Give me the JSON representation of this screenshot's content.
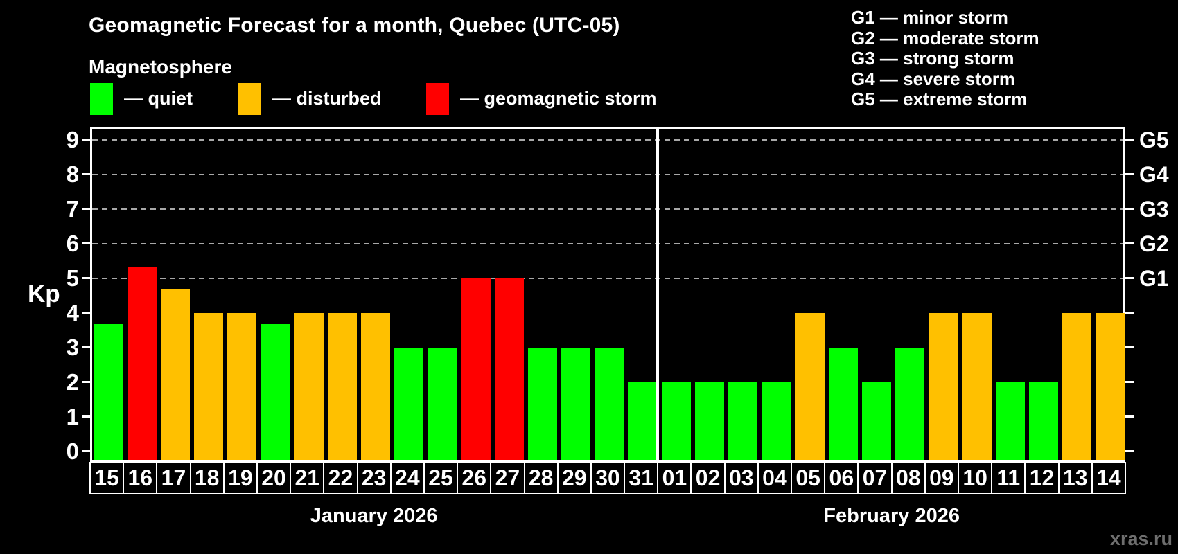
{
  "title": "Geomagnetic Forecast for a month, Quebec (UTC-05)",
  "subtitle": "Magnetosphere",
  "legend": {
    "items": [
      {
        "id": "quiet",
        "label": "— quiet",
        "color": "#00ff00"
      },
      {
        "id": "disturbed",
        "label": "— disturbed",
        "color": "#ffc000"
      },
      {
        "id": "storm",
        "label": "— geomagnetic storm",
        "color": "#ff0000"
      }
    ]
  },
  "g_scale_legend": [
    "G1 — minor storm",
    "G2 — moderate storm",
    "G3 — strong storm",
    "G4 — severe storm",
    "G5 — extreme storm"
  ],
  "watermark": "xras.ru",
  "colors": {
    "background": "#000000",
    "quiet": "#00ff00",
    "disturbed": "#ffc000",
    "storm": "#ff0000",
    "axis": "#ffffff",
    "gridline": "#a8a8a8",
    "watermark": "#6e6e6e"
  },
  "chart_data": {
    "type": "bar",
    "title": "Geomagnetic Forecast for a month, Quebec (UTC-05)",
    "subtitle": "Magnetosphere",
    "ylabel": "Kp",
    "ylim": [
      0,
      9.4
    ],
    "yticks": [
      0,
      1,
      2,
      3,
      4,
      5,
      6,
      7,
      8,
      9
    ],
    "gridlines_at_kp": [
      5,
      6,
      7,
      8,
      9
    ],
    "grid": "dashed-horizontal",
    "right_axis_labels": [
      {
        "kp": 5,
        "text": "G1"
      },
      {
        "kp": 6,
        "text": "G2"
      },
      {
        "kp": 7,
        "text": "G3"
      },
      {
        "kp": 8,
        "text": "G4"
      },
      {
        "kp": 9,
        "text": "G5"
      }
    ],
    "x_groups": [
      {
        "label": "January 2026",
        "days": 17
      },
      {
        "label": "February 2026",
        "days": 14
      }
    ],
    "bars": [
      {
        "day": "15",
        "month": "January 2026",
        "kp": 3.67,
        "status": "quiet"
      },
      {
        "day": "16",
        "month": "January 2026",
        "kp": 5.33,
        "status": "storm"
      },
      {
        "day": "17",
        "month": "January 2026",
        "kp": 4.67,
        "status": "disturbed"
      },
      {
        "day": "18",
        "month": "January 2026",
        "kp": 4,
        "status": "disturbed"
      },
      {
        "day": "19",
        "month": "January 2026",
        "kp": 4,
        "status": "disturbed"
      },
      {
        "day": "20",
        "month": "January 2026",
        "kp": 3.67,
        "status": "quiet"
      },
      {
        "day": "21",
        "month": "January 2026",
        "kp": 4,
        "status": "disturbed"
      },
      {
        "day": "22",
        "month": "January 2026",
        "kp": 4,
        "status": "disturbed"
      },
      {
        "day": "23",
        "month": "January 2026",
        "kp": 4,
        "status": "disturbed"
      },
      {
        "day": "24",
        "month": "January 2026",
        "kp": 3,
        "status": "quiet"
      },
      {
        "day": "25",
        "month": "January 2026",
        "kp": 3,
        "status": "quiet"
      },
      {
        "day": "26",
        "month": "January 2026",
        "kp": 5,
        "status": "storm"
      },
      {
        "day": "27",
        "month": "January 2026",
        "kp": 5,
        "status": "storm"
      },
      {
        "day": "28",
        "month": "January 2026",
        "kp": 3,
        "status": "quiet"
      },
      {
        "day": "29",
        "month": "January 2026",
        "kp": 3,
        "status": "quiet"
      },
      {
        "day": "30",
        "month": "January 2026",
        "kp": 3,
        "status": "quiet"
      },
      {
        "day": "31",
        "month": "January 2026",
        "kp": 2,
        "status": "quiet"
      },
      {
        "day": "01",
        "month": "February 2026",
        "kp": 2,
        "status": "quiet"
      },
      {
        "day": "02",
        "month": "February 2026",
        "kp": 2,
        "status": "quiet"
      },
      {
        "day": "03",
        "month": "February 2026",
        "kp": 2,
        "status": "quiet"
      },
      {
        "day": "04",
        "month": "February 2026",
        "kp": 2,
        "status": "quiet"
      },
      {
        "day": "05",
        "month": "February 2026",
        "kp": 4,
        "status": "disturbed"
      },
      {
        "day": "06",
        "month": "February 2026",
        "kp": 3,
        "status": "quiet"
      },
      {
        "day": "07",
        "month": "February 2026",
        "kp": 2,
        "status": "quiet"
      },
      {
        "day": "08",
        "month": "February 2026",
        "kp": 3,
        "status": "quiet"
      },
      {
        "day": "09",
        "month": "February 2026",
        "kp": 4,
        "status": "disturbed"
      },
      {
        "day": "10",
        "month": "February 2026",
        "kp": 4,
        "status": "disturbed"
      },
      {
        "day": "11",
        "month": "February 2026",
        "kp": 2,
        "status": "quiet"
      },
      {
        "day": "12",
        "month": "February 2026",
        "kp": 2,
        "status": "quiet"
      },
      {
        "day": "13",
        "month": "February 2026",
        "kp": 4,
        "status": "disturbed"
      },
      {
        "day": "14",
        "month": "February 2026",
        "kp": 4,
        "status": "disturbed"
      }
    ]
  }
}
